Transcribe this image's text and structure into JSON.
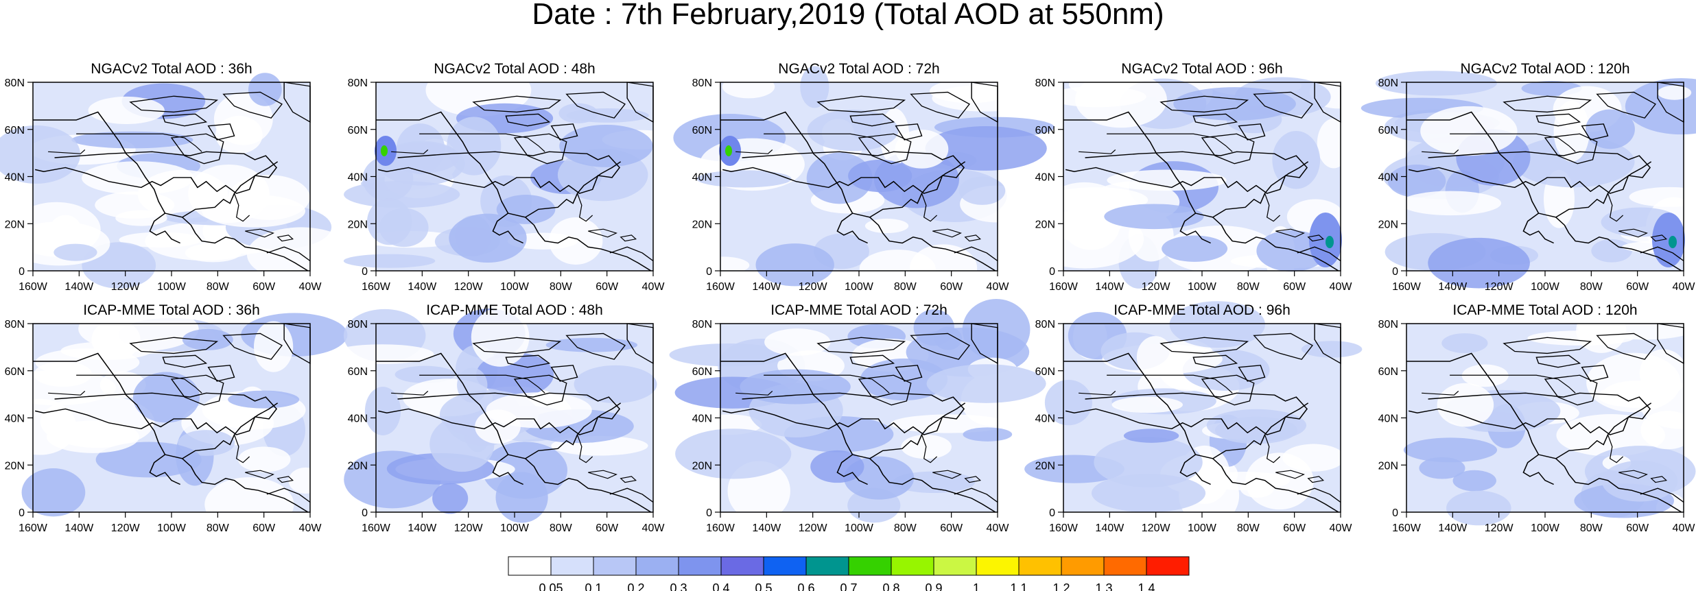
{
  "figure": {
    "title": "Date : 7th February,2019 (Total AOD at 550nm)"
  },
  "panels": [
    {
      "title": "NGACv2 Total AOD : 36h",
      "model": "NGACv2",
      "lead": "36h"
    },
    {
      "title": "NGACv2 Total AOD : 48h",
      "model": "NGACv2",
      "lead": "48h"
    },
    {
      "title": "NGACv2 Total AOD : 72h",
      "model": "NGACv2",
      "lead": "72h"
    },
    {
      "title": "NGACv2 Total AOD : 96h",
      "model": "NGACv2",
      "lead": "96h"
    },
    {
      "title": "NGACv2 Total AOD : 120h",
      "model": "NGACv2",
      "lead": "120h"
    },
    {
      "title": "ICAP-MME Total AOD : 36h",
      "model": "ICAP-MME",
      "lead": "36h"
    },
    {
      "title": "ICAP-MME Total AOD : 48h",
      "model": "ICAP-MME",
      "lead": "48h"
    },
    {
      "title": "ICAP-MME Total AOD : 72h",
      "model": "ICAP-MME",
      "lead": "72h"
    },
    {
      "title": "ICAP-MME Total AOD : 96h",
      "model": "ICAP-MME",
      "lead": "96h"
    },
    {
      "title": "ICAP-MME Total AOD : 120h",
      "model": "ICAP-MME",
      "lead": "120h"
    }
  ],
  "map": {
    "lon_range": [
      -160,
      -40
    ],
    "lat_range": [
      0,
      80
    ],
    "lon_ticks": [
      {
        "value": -160,
        "label": "160W"
      },
      {
        "value": -140,
        "label": "140W"
      },
      {
        "value": -120,
        "label": "120W"
      },
      {
        "value": -100,
        "label": "100W"
      },
      {
        "value": -80,
        "label": "80W"
      },
      {
        "value": -60,
        "label": "60W"
      },
      {
        "value": -40,
        "label": "40W"
      }
    ],
    "lat_ticks": [
      {
        "value": 0,
        "label": "0"
      },
      {
        "value": 20,
        "label": "20N"
      },
      {
        "value": 40,
        "label": "40N"
      },
      {
        "value": 60,
        "label": "60N"
      },
      {
        "value": 80,
        "label": "80N"
      }
    ]
  },
  "colorbar": {
    "labels": [
      "0.05",
      "0.1",
      "0.2",
      "0.3",
      "0.4",
      "0.5",
      "0.6",
      "0.7",
      "0.8",
      "0.9",
      "1",
      "1.1",
      "1.2",
      "1.3",
      "1.4"
    ],
    "colors": [
      "#ffffff",
      "#d6e0fb",
      "#b8c7f6",
      "#9bb0f2",
      "#7e94ee",
      "#6a6ae4",
      "#0f62f2",
      "#00958f",
      "#35d100",
      "#97f500",
      "#cbf743",
      "#fcf500",
      "#ffc100",
      "#ff9b00",
      "#ff6a00",
      "#ff1d00"
    ]
  }
}
